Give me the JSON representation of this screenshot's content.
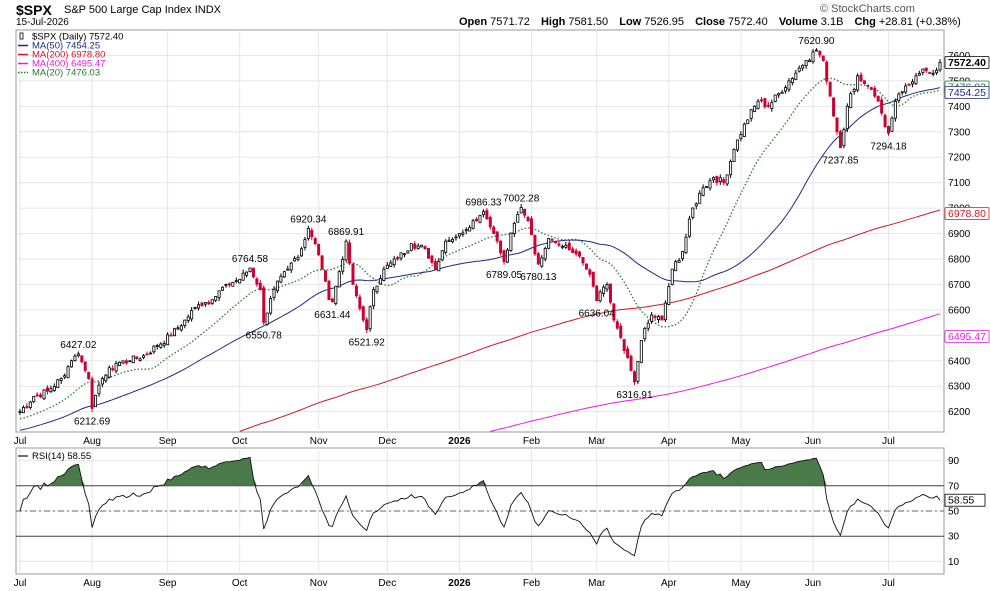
{
  "header": {
    "symbol": "$SPX",
    "name": "S&P 500 Large Cap Index",
    "exchange": "INDX",
    "date": "15-Jul-2026",
    "brand": "© StockCharts.com",
    "open_label": "Open",
    "open": "7571.72",
    "high_label": "High",
    "high": "7581.50",
    "low_label": "Low",
    "low": "7526.95",
    "close_label": "Close",
    "close": "7572.40",
    "volume_label": "Volume",
    "volume": "3.1B",
    "chg_label": "Chg",
    "chg": "+28.81 (+0.38%)"
  },
  "colors": {
    "up": "#000000",
    "down": "#cc0033",
    "ma50": "#1f2c7a",
    "ma200": "#cc1a2a",
    "ma400": "#e020e0",
    "ma20": "#2d7a2d",
    "rsi_fill": "#4a7a4a",
    "grid": "#e6e6e6"
  },
  "chart_data": [
    {
      "type": "candlestick",
      "legend_placement": "top-left",
      "legend": [
        {
          "text": "$SPX (Daily) 7572.40",
          "color": "#000000",
          "style": "candle"
        },
        {
          "text": "MA(50) 7454.25",
          "color": "#1f2c7a",
          "style": "line"
        },
        {
          "text": "MA(200) 6978.80",
          "color": "#cc1a2a",
          "style": "line"
        },
        {
          "text": "MA(400) 6495.47",
          "color": "#e020e0",
          "style": "line"
        },
        {
          "text": "MA(20) 7476.03",
          "color": "#2d7a2d",
          "style": "dotted"
        }
      ],
      "y_range": [
        6120,
        7700
      ],
      "y_ticks": [
        6200,
        6300,
        6400,
        6500,
        6600,
        6700,
        6800,
        6900,
        7000,
        7100,
        7200,
        7300,
        7400,
        7500,
        7600
      ],
      "x_labels": [
        "Jul",
        "Aug",
        "Sep",
        "Oct",
        "Nov",
        "Dec",
        "2026",
        "Feb",
        "Mar",
        "Apr",
        "May",
        "Jun",
        "Jul"
      ],
      "x_label_bold": "2026",
      "x_label_index": [
        0,
        21,
        43,
        64,
        87,
        107,
        128,
        149,
        168,
        189,
        210,
        231,
        253
      ],
      "price_anchors": [
        [
          0,
          6200
        ],
        [
          4,
          6260
        ],
        [
          8,
          6280
        ],
        [
          12,
          6330
        ],
        [
          15,
          6400
        ],
        [
          17,
          6427.02
        ],
        [
          20,
          6330
        ],
        [
          21,
          6212.69
        ],
        [
          24,
          6330
        ],
        [
          28,
          6390
        ],
        [
          32,
          6400
        ],
        [
          36,
          6420
        ],
        [
          40,
          6460
        ],
        [
          44,
          6500
        ],
        [
          48,
          6560
        ],
        [
          52,
          6620
        ],
        [
          56,
          6640
        ],
        [
          60,
          6700
        ],
        [
          64,
          6720
        ],
        [
          67,
          6764.58
        ],
        [
          70,
          6680
        ],
        [
          71,
          6550.78
        ],
        [
          74,
          6680
        ],
        [
          78,
          6760
        ],
        [
          82,
          6840
        ],
        [
          84,
          6920.34
        ],
        [
          86,
          6860
        ],
        [
          88,
          6760
        ],
        [
          90,
          6640
        ],
        [
          91,
          6631.44
        ],
        [
          93,
          6750
        ],
        [
          95,
          6869.91
        ],
        [
          97,
          6700
        ],
        [
          100,
          6560
        ],
        [
          101,
          6521.92
        ],
        [
          103,
          6680
        ],
        [
          106,
          6760
        ],
        [
          110,
          6800
        ],
        [
          114,
          6860
        ],
        [
          118,
          6840
        ],
        [
          121,
          6760
        ],
        [
          124,
          6870
        ],
        [
          128,
          6900
        ],
        [
          132,
          6950
        ],
        [
          135,
          6986.33
        ],
        [
          138,
          6900
        ],
        [
          141,
          6789.05
        ],
        [
          144,
          6940
        ],
        [
          146,
          7002.28
        ],
        [
          148,
          6950
        ],
        [
          150,
          6820
        ],
        [
          151,
          6780.13
        ],
        [
          154,
          6880
        ],
        [
          158,
          6850
        ],
        [
          162,
          6820
        ],
        [
          166,
          6740
        ],
        [
          168,
          6636.04
        ],
        [
          171,
          6700
        ],
        [
          173,
          6560
        ],
        [
          176,
          6440
        ],
        [
          179,
          6316.91
        ],
        [
          181,
          6480
        ],
        [
          184,
          6580
        ],
        [
          187,
          6560
        ],
        [
          190,
          6760
        ],
        [
          193,
          6830
        ],
        [
          196,
          7000
        ],
        [
          199,
          7080
        ],
        [
          202,
          7120
        ],
        [
          205,
          7100
        ],
        [
          208,
          7230
        ],
        [
          211,
          7330
        ],
        [
          215,
          7420
        ],
        [
          218,
          7400
        ],
        [
          221,
          7450
        ],
        [
          224,
          7500
        ],
        [
          227,
          7550
        ],
        [
          229,
          7580
        ],
        [
          232,
          7620.9
        ],
        [
          234,
          7580
        ],
        [
          236,
          7440
        ],
        [
          238,
          7300
        ],
        [
          239,
          7237.85
        ],
        [
          241,
          7400
        ],
        [
          244,
          7520
        ],
        [
          247,
          7480
        ],
        [
          250,
          7420
        ],
        [
          252,
          7320
        ],
        [
          253,
          7294.18
        ],
        [
          255,
          7420
        ],
        [
          258,
          7480
        ],
        [
          261,
          7520
        ],
        [
          264,
          7540
        ],
        [
          266,
          7530
        ],
        [
          268,
          7572.4
        ]
      ],
      "annotations": [
        {
          "i": 17,
          "value": 6427.02,
          "text": "6427.02",
          "pos": "above"
        },
        {
          "i": 21,
          "value": 6212.69,
          "text": "6212.69",
          "pos": "below"
        },
        {
          "i": 67,
          "value": 6764.58,
          "text": "6764.58",
          "pos": "above"
        },
        {
          "i": 71,
          "value": 6550.78,
          "text": "6550.78",
          "pos": "below"
        },
        {
          "i": 84,
          "value": 6920.34,
          "text": "6920.34",
          "pos": "above"
        },
        {
          "i": 91,
          "value": 6631.44,
          "text": "6631.44",
          "pos": "below"
        },
        {
          "i": 95,
          "value": 6869.91,
          "text": "6869.91",
          "pos": "above"
        },
        {
          "i": 101,
          "value": 6521.92,
          "text": "6521.92",
          "pos": "below"
        },
        {
          "i": 135,
          "value": 6986.33,
          "text": "6986.33",
          "pos": "above"
        },
        {
          "i": 141,
          "value": 6789.05,
          "text": "6789.05",
          "pos": "below"
        },
        {
          "i": 146,
          "value": 7002.28,
          "text": "7002.28",
          "pos": "above"
        },
        {
          "i": 151,
          "value": 6780.13,
          "text": "6780.13",
          "pos": "below"
        },
        {
          "i": 168,
          "value": 6636.04,
          "text": "6636.04",
          "pos": "below"
        },
        {
          "i": 179,
          "value": 6316.91,
          "text": "6316.91",
          "pos": "below"
        },
        {
          "i": 232,
          "value": 7620.9,
          "text": "7620.90",
          "pos": "above"
        },
        {
          "i": 239,
          "value": 7237.85,
          "text": "7237.85",
          "pos": "below"
        },
        {
          "i": 253,
          "value": 7294.18,
          "text": "7294.18",
          "pos": "below"
        }
      ],
      "right_tags": [
        {
          "value": 7572.4,
          "text": "7572.40",
          "color": "#000000",
          "bold": true
        },
        {
          "value": 7476.03,
          "text": "7476.03",
          "color": "#2d7a2d",
          "bold": false
        },
        {
          "value": 7454.25,
          "text": "7454.25",
          "color": "#1f2c7a",
          "bold": false
        },
        {
          "value": 6978.8,
          "text": "6978.80",
          "color": "#cc1a2a",
          "bold": false
        },
        {
          "value": 6495.47,
          "text": "6495.47",
          "color": "#e020e0",
          "bold": false
        }
      ]
    },
    {
      "type": "line",
      "legend_placement": "top-left",
      "legend_text": "RSI(14) 58.55",
      "y_range": [
        0,
        100
      ],
      "y_ticks": [
        10,
        30,
        50,
        70,
        90
      ],
      "overbought": 70,
      "oversold": 30,
      "last_value": 58.55,
      "last_text": "58.55"
    }
  ]
}
